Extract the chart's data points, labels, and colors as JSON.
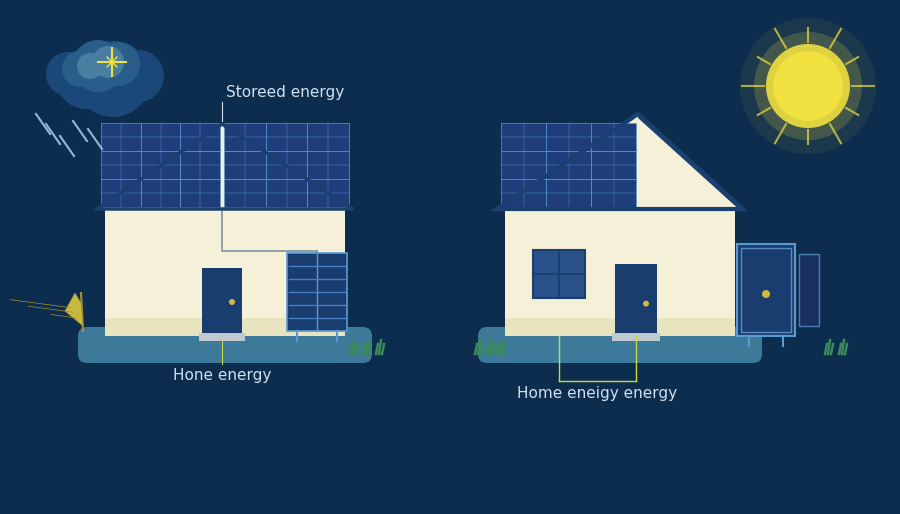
{
  "bg_color": "#0d2d4e",
  "ground_color": "#3d7a9a",
  "wall_color": "#f5f0d8",
  "wall_stripe": "#e8e4c0",
  "roof_color": "#1a4070",
  "solar_bg": "#1e3d7a",
  "solar_line": "#5a9ad4",
  "solar_cell": "#2a508a",
  "door_color": "#1a3d70",
  "door_handle": "#d4b840",
  "battery_dark": "#1a3d70",
  "battery_light": "#3a6aaa",
  "battery_cell": "#4a80c0",
  "window_color": "#2a508a",
  "leaf_color": "#c8b840",
  "leaf_line": "#a89030",
  "grass_color": "#3a8a5a",
  "cloud_dark": "#1a4878",
  "cloud_mid": "#2a5e8a",
  "cloud_light": "#4a7ea0",
  "star_color": "#f0e040",
  "sun_color": "#f0e040",
  "rain_color": "#90b8d8",
  "line_color": "#c8d840",
  "text_color": "#d0e0f0",
  "night_label": "Storeed energy",
  "night_sub": "Hone energy",
  "day_sub": "Home eneigy energy"
}
